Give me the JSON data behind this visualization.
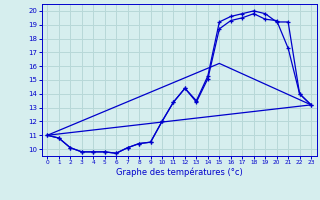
{
  "xlabel": "Graphe des températures (°c)",
  "xlim": [
    -0.5,
    23.5
  ],
  "ylim": [
    9.5,
    20.5
  ],
  "yticks": [
    10,
    11,
    12,
    13,
    14,
    15,
    16,
    17,
    18,
    19,
    20
  ],
  "xticks": [
    0,
    1,
    2,
    3,
    4,
    5,
    6,
    7,
    8,
    9,
    10,
    11,
    12,
    13,
    14,
    15,
    16,
    17,
    18,
    19,
    20,
    21,
    22,
    23
  ],
  "bg_color": "#d6eeee",
  "grid_color": "#b8d8d8",
  "line_color": "#0000cc",
  "line1_x": [
    0,
    1,
    2,
    3,
    4,
    5,
    6,
    7,
    8,
    9,
    10,
    11,
    12,
    13,
    14,
    15,
    16,
    17,
    18,
    19,
    20,
    21,
    22,
    23
  ],
  "line1_y": [
    11.0,
    10.8,
    10.1,
    9.8,
    9.8,
    9.8,
    9.7,
    10.1,
    10.4,
    10.5,
    12.0,
    13.4,
    14.4,
    13.4,
    15.1,
    18.7,
    19.3,
    19.5,
    19.8,
    19.4,
    19.3,
    17.3,
    14.0,
    13.2
  ],
  "line2_x": [
    0,
    1,
    2,
    3,
    4,
    5,
    6,
    7,
    8,
    9,
    10,
    11,
    12,
    13,
    14,
    15,
    16,
    17,
    18,
    19,
    20,
    21,
    22,
    23
  ],
  "line2_y": [
    11.0,
    10.8,
    10.1,
    9.8,
    9.8,
    9.8,
    9.7,
    10.1,
    10.4,
    10.5,
    12.0,
    13.4,
    14.4,
    13.5,
    15.3,
    19.2,
    19.6,
    19.8,
    20.0,
    19.8,
    19.2,
    19.2,
    14.0,
    13.2
  ],
  "line3_x": [
    0,
    23
  ],
  "line3_y": [
    11.0,
    13.2
  ],
  "line4_x": [
    0,
    15,
    23
  ],
  "line4_y": [
    11.0,
    16.2,
    13.2
  ]
}
